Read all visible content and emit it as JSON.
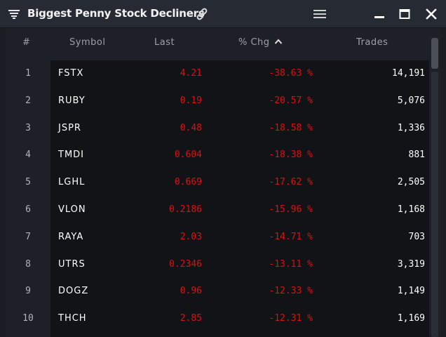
{
  "window": {
    "title": "Biggest Penny Stock Decliners"
  },
  "icons": {
    "title": "filter-list-icon",
    "link": "link-icon",
    "menu": "hamburger-menu-icon",
    "minimize": "minimize-icon",
    "maximize": "maximize-icon",
    "close": "close-icon",
    "sort": "chevron-up-icon"
  },
  "columns": {
    "num": "#",
    "symbol": "Symbol",
    "last": "Last",
    "chg": "% Chg",
    "trades": "Trades"
  },
  "rows": [
    {
      "num": "1",
      "symbol": "FSTX",
      "last": "4.21",
      "chg": "-38.63 %",
      "trades": "14,191"
    },
    {
      "num": "2",
      "symbol": "RUBY",
      "last": "0.19",
      "chg": "-20.57 %",
      "trades": "5,076"
    },
    {
      "num": "3",
      "symbol": "JSPR",
      "last": "0.48",
      "chg": "-18.58 %",
      "trades": "1,336"
    },
    {
      "num": "4",
      "symbol": "TMDI",
      "last": "0.604",
      "chg": "-18.38 %",
      "trades": "881"
    },
    {
      "num": "5",
      "symbol": "LGHL",
      "last": "0.669",
      "chg": "-17.62 %",
      "trades": "2,505"
    },
    {
      "num": "6",
      "symbol": "VLON",
      "last": "0.2186",
      "chg": "-15.96 %",
      "trades": "1,168"
    },
    {
      "num": "7",
      "symbol": "RAYA",
      "last": "2.03",
      "chg": "-14.71 %",
      "trades": "703"
    },
    {
      "num": "8",
      "symbol": "UTRS",
      "last": "0.2346",
      "chg": "-13.11 %",
      "trades": "3,319"
    },
    {
      "num": "9",
      "symbol": "DOGZ",
      "last": "0.96",
      "chg": "-12.33 %",
      "trades": "1,149"
    },
    {
      "num": "10",
      "symbol": "THCH",
      "last": "2.85",
      "chg": "-12.31 %",
      "trades": "1,169"
    }
  ],
  "colors": {
    "negative": "#d21414",
    "background": "#1b1d23",
    "titlebar": "#262a33"
  }
}
